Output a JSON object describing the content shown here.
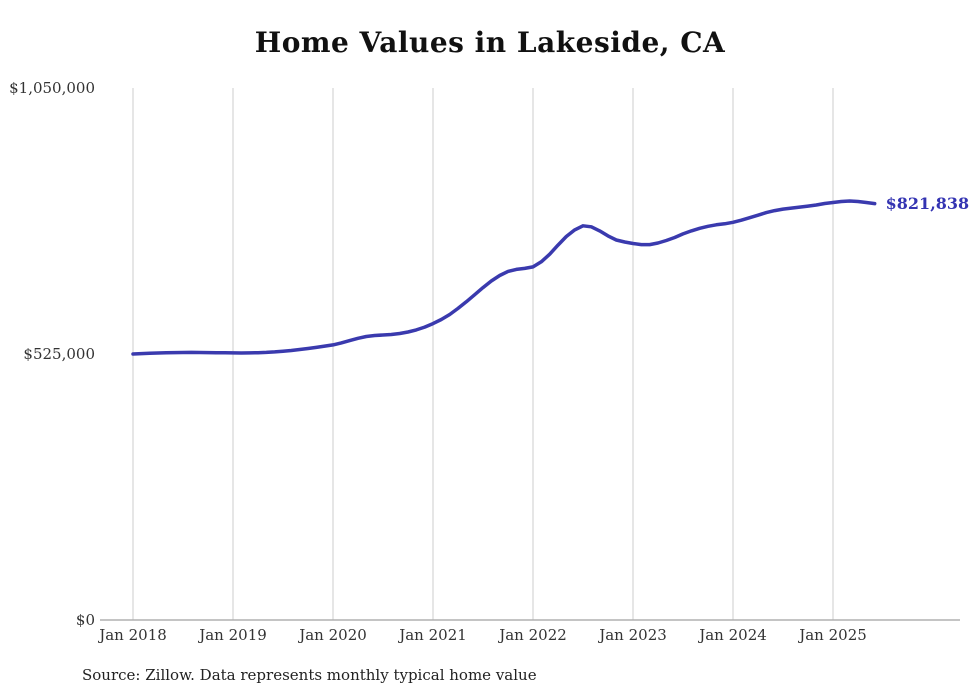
{
  "chart_data": {
    "type": "line",
    "title": "Home Values in Lakeside, CA",
    "xlabel": "",
    "ylabel": "",
    "ylim": [
      0,
      1050000
    ],
    "grid": "vertical-only",
    "legend": false,
    "frequency": "monthly",
    "start_month": "Jan 2018",
    "end_month": "Jun 2025",
    "x_ticks": [
      "Jan 2018",
      "Jan 2019",
      "Jan 2020",
      "Jan 2021",
      "Jan 2022",
      "Jan 2023",
      "Jan 2024",
      "Jan 2025"
    ],
    "y_ticks": [
      {
        "label": "$1,050,000",
        "value": 1050000
      },
      {
        "label": "$525,000",
        "value": 525000
      },
      {
        "label": "$0",
        "value": 0
      }
    ],
    "values": [
      525000,
      525800,
      526500,
      527000,
      527400,
      527800,
      528000,
      528100,
      528000,
      527800,
      527500,
      527300,
      527200,
      527000,
      527100,
      527500,
      528200,
      529200,
      530500,
      532000,
      533800,
      535800,
      538000,
      540500,
      543000,
      547000,
      551500,
      556000,
      559500,
      561500,
      562500,
      563500,
      565500,
      568500,
      572500,
      578000,
      585000,
      593000,
      603000,
      615000,
      628000,
      642000,
      656000,
      669000,
      680000,
      688000,
      692000,
      694000,
      697000,
      707000,
      722000,
      740000,
      757000,
      770000,
      778000,
      776000,
      768000,
      758000,
      750000,
      746000,
      743000,
      741000,
      741000,
      744000,
      749000,
      755000,
      762000,
      768000,
      773000,
      777000,
      780000,
      782000,
      785000,
      789000,
      794000,
      799000,
      804000,
      808000,
      811000,
      813000,
      815000,
      817000,
      819000,
      822000,
      824000,
      826000,
      827000,
      826000,
      824000,
      821838
    ],
    "end_label": "$821,838",
    "end_value": 821838,
    "line_color": "#3a3aae",
    "end_label_color": "#3434b2",
    "grid_color": "#cccccc",
    "axis_color": "#b0b0b0",
    "source_note": "Source: Zillow. Data represents monthly typical home value"
  }
}
